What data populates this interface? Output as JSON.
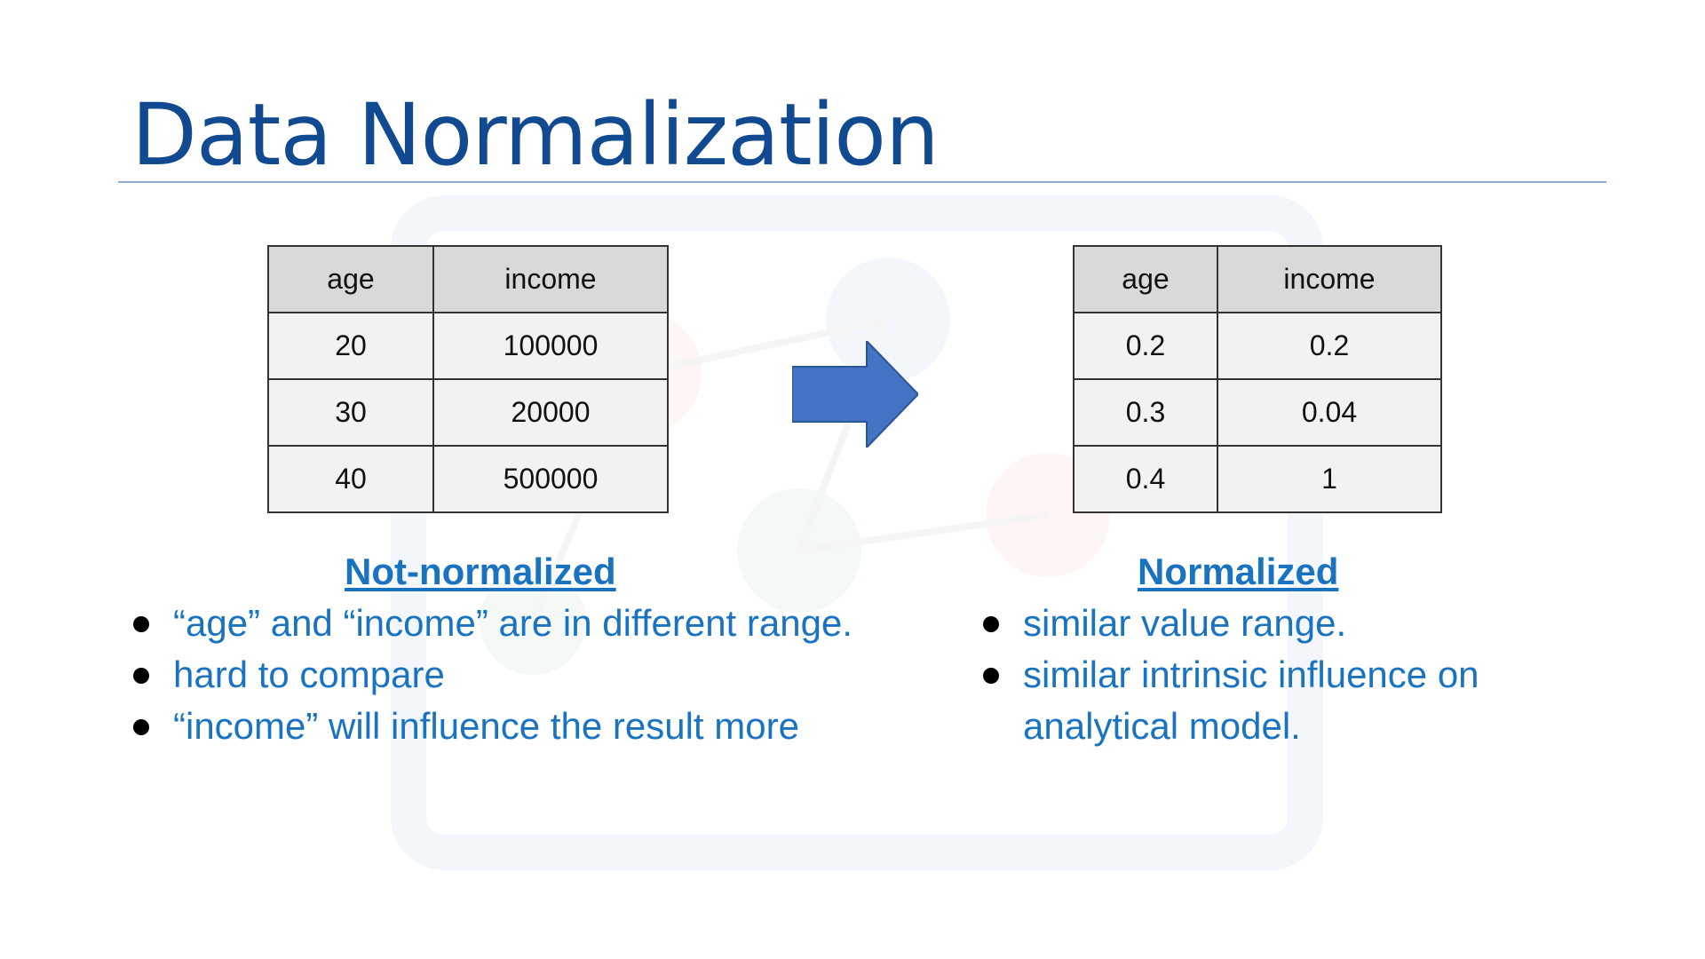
{
  "title": "Data Normalization",
  "colors": {
    "title": "#114a91",
    "accent_text": "#1a73c1",
    "arrow": "#4472c4",
    "header_fill": "#d9d9d9",
    "cell_fill": "#f2f2f2"
  },
  "left_table": {
    "headers": [
      "age",
      "income"
    ],
    "rows": [
      [
        "20",
        "100000"
      ],
      [
        "30",
        "20000"
      ],
      [
        "40",
        "500000"
      ]
    ]
  },
  "right_table": {
    "headers": [
      "age",
      "income"
    ],
    "rows": [
      [
        "0.2",
        "0.2"
      ],
      [
        "0.3",
        "0.04"
      ],
      [
        "0.4",
        "1"
      ]
    ]
  },
  "arrow_icon": "right-arrow-icon",
  "left_section": {
    "heading": "Not-normalized",
    "bullets": [
      "“age” and “income” are in different range.",
      "hard to compare",
      "“income” will influence the result more"
    ]
  },
  "right_section": {
    "heading": "Normalized",
    "bullets": [
      "similar value range.",
      "similar intrinsic influence on analytical model."
    ]
  }
}
